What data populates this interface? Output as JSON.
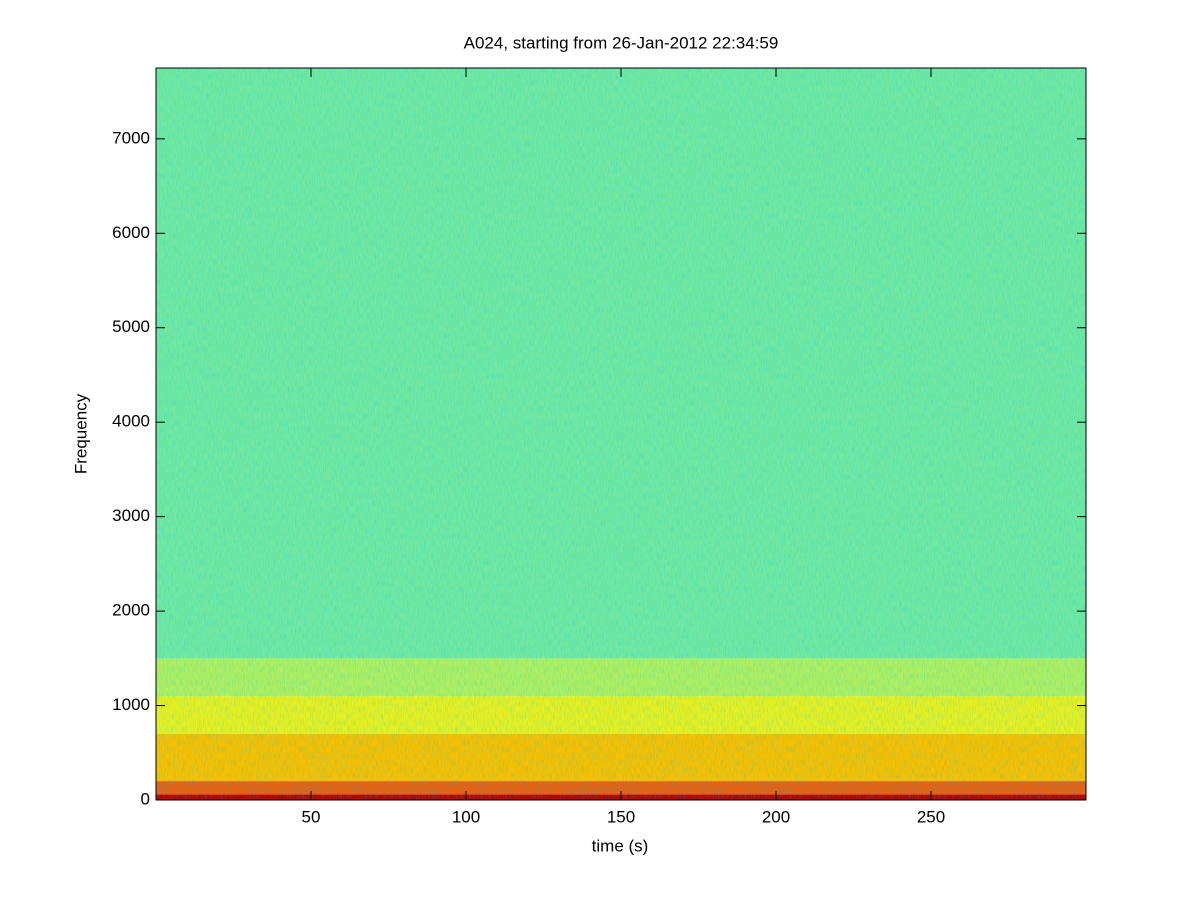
{
  "chart_data": {
    "type": "spectrogram",
    "title": "A024, starting from 26-Jan-2012 22:34:59",
    "x_label": "time (s)",
    "y_label": "Frequency",
    "xlim": [
      0,
      300
    ],
    "ylim": [
      0,
      7750
    ],
    "xticks": [
      50,
      100,
      150,
      200,
      250
    ],
    "yticks": [
      0,
      1000,
      2000,
      3000,
      4000,
      5000,
      6000,
      7000
    ],
    "bands": [
      {
        "from": 0,
        "to": 60,
        "color": "#b80000"
      },
      {
        "from": 60,
        "to": 200,
        "color": "#e86010"
      },
      {
        "from": 200,
        "to": 700,
        "color": "#f8c000"
      },
      {
        "from": 700,
        "to": 1100,
        "color": "#e8f020"
      },
      {
        "from": 1100,
        "to": 1500,
        "color": "#b0f060"
      },
      {
        "from": 1500,
        "to": 7750,
        "color": "#72e8a0"
      }
    ]
  }
}
